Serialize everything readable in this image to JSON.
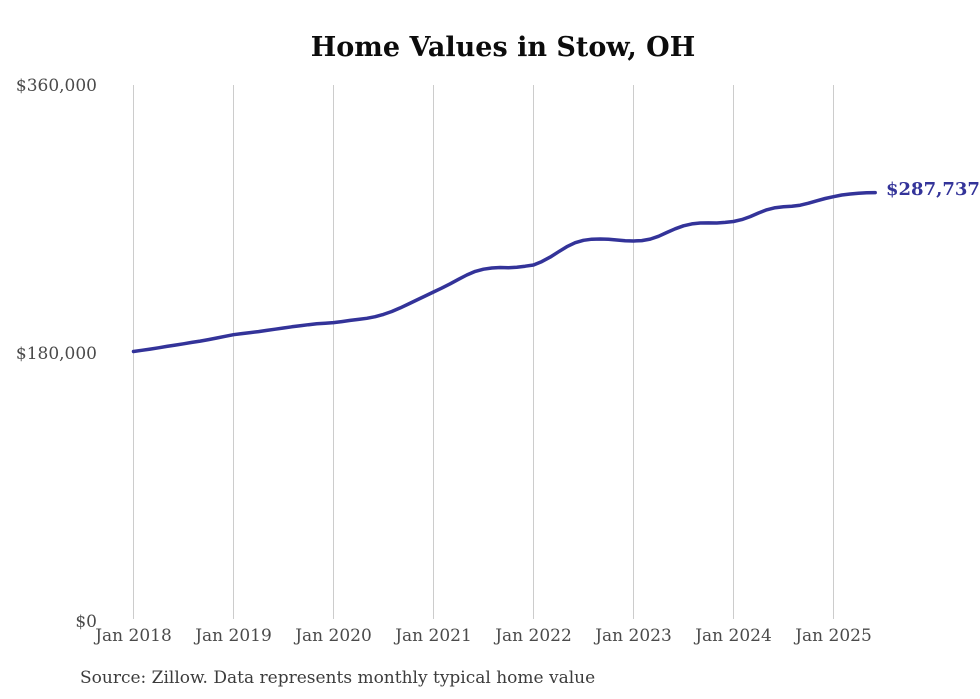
{
  "page": {
    "background": "#ffffff"
  },
  "chart_data": {
    "type": "line",
    "title": "Home Values in Stow, OH",
    "source_note": "Source: Zillow. Data represents monthly typical home value",
    "end_label": "$287,737",
    "end_value": 287737,
    "frequency": "monthly",
    "x_start_month": "2018-01",
    "x_end_month": "2025-06",
    "x_tick_labels": [
      "Jan 2018",
      "Jan 2019",
      "Jan 2020",
      "Jan 2021",
      "Jan 2022",
      "Jan 2023",
      "Jan 2024",
      "Jan 2025"
    ],
    "y_ticks": [
      {
        "label": "$0",
        "value": 0
      },
      {
        "label": "$180,000",
        "value": 180000
      },
      {
        "label": "$360,000",
        "value": 360000
      }
    ],
    "ylim": [
      0,
      360000
    ],
    "grid": "vertical-only",
    "legend": "none",
    "series": [
      {
        "name": "Typical home value",
        "values": [
          181000,
          181800,
          182600,
          183500,
          184400,
          185300,
          186200,
          187100,
          188000,
          189000,
          190100,
          191200,
          192300,
          193000,
          193700,
          194400,
          195200,
          196000,
          196800,
          197600,
          198300,
          199000,
          199600,
          200000,
          200400,
          201100,
          201900,
          202600,
          203300,
          204400,
          205900,
          207900,
          210300,
          212900,
          215600,
          218300,
          221000,
          223600,
          226500,
          229500,
          232400,
          234800,
          236300,
          237100,
          237400,
          237300,
          237600,
          238300,
          239100,
          241400,
          244400,
          248000,
          251400,
          254100,
          255700,
          256400,
          256600,
          256400,
          255900,
          255400,
          255200,
          255500,
          256500,
          258400,
          260900,
          263400,
          265400,
          266700,
          267300,
          267400,
          267300,
          267700,
          268300,
          269600,
          271600,
          274000,
          276200,
          277600,
          278200,
          278600,
          279300,
          280600,
          282200,
          283800,
          285000,
          286100,
          286800,
          287300,
          287600,
          287737
        ]
      }
    ],
    "colors": {
      "line": "#333399",
      "grid": "#cccccc",
      "axis_text": "#4a4a4a",
      "title": "#0c0c0c",
      "source_text": "#3c3c3c"
    }
  }
}
